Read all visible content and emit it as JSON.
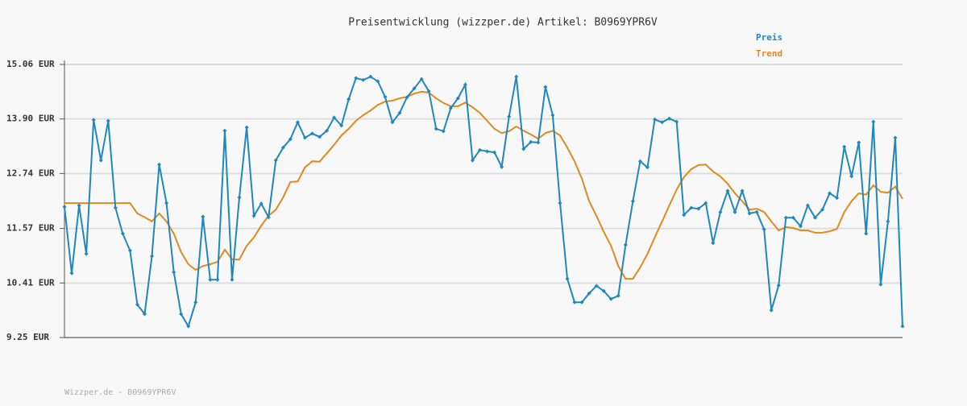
{
  "chart_data": {
    "type": "line",
    "title": "Preisentwicklung (wizzper.de) Artikel: B0969YPR6V",
    "footer": "Wizzper.de - B0969YPR6V",
    "categories": [
      null,
      null,
      null,
      null,
      null,
      null,
      null,
      null,
      null,
      null,
      null,
      null,
      null,
      null,
      null,
      null,
      null,
      null,
      null,
      null,
      null,
      null,
      null,
      null,
      null,
      null,
      null,
      null,
      null,
      null,
      null,
      null,
      null,
      null,
      null,
      null,
      null,
      null,
      null,
      null,
      null,
      null,
      null,
      null,
      null,
      null,
      null,
      null,
      null,
      null,
      null,
      null,
      null,
      null,
      null,
      null,
      null,
      null,
      null,
      null,
      null,
      null,
      null,
      null,
      null,
      null,
      null,
      null,
      null,
      null,
      null,
      null,
      null,
      null,
      null,
      null,
      null,
      null,
      null,
      null,
      null,
      null,
      null,
      null,
      null,
      null,
      null,
      null,
      null,
      null,
      null,
      null,
      null,
      null,
      null,
      null,
      null,
      null,
      null,
      null,
      null,
      null,
      null,
      null,
      null,
      null,
      null,
      null,
      null,
      null,
      null,
      null,
      null,
      null,
      null,
      null
    ],
    "series": [
      {
        "name": "Preis",
        "color": "#1f87c0",
        "markers": true,
        "values": [
          12.03,
          10.62,
          12.06,
          11.03,
          13.88,
          13.02,
          13.86,
          12.01,
          11.46,
          11.1,
          9.95,
          9.75,
          10.98,
          12.93,
          12.11,
          10.64,
          9.75,
          9.49,
          10.0,
          11.82,
          10.48,
          10.48,
          13.65,
          10.48,
          12.23,
          13.72,
          11.84,
          12.1,
          11.81,
          13.02,
          13.29,
          13.47,
          13.83,
          13.5,
          13.59,
          13.52,
          13.65,
          13.93,
          13.76,
          14.32,
          14.77,
          14.73,
          14.8,
          14.7,
          14.37,
          13.83,
          14.03,
          14.36,
          14.55,
          14.75,
          14.49,
          13.69,
          13.64,
          14.13,
          14.34,
          14.63,
          13.02,
          13.24,
          13.21,
          13.19,
          12.88,
          13.95,
          14.8,
          13.26,
          13.41,
          13.4,
          14.58,
          13.98,
          12.11,
          10.5,
          10.0,
          10.0,
          10.19,
          10.35,
          10.24,
          10.07,
          10.14,
          11.22,
          12.15,
          13.0,
          12.87,
          13.89,
          13.83,
          13.91,
          13.84,
          11.86,
          12.01,
          11.99,
          12.11,
          11.26,
          11.92,
          12.37,
          11.92,
          12.37,
          11.89,
          11.92,
          11.55,
          9.83,
          10.36,
          11.8,
          11.8,
          11.62,
          12.06,
          11.8,
          11.97,
          12.32,
          12.22,
          13.31,
          12.68,
          13.4,
          11.46,
          13.84,
          10.38,
          11.72,
          13.5,
          9.49
        ]
      },
      {
        "name": "Trend",
        "color": "#e08a1e",
        "markers": false,
        "values": [
          12.11,
          12.11,
          12.11,
          12.11,
          12.11,
          12.11,
          12.11,
          12.11,
          12.11,
          12.11,
          11.89,
          11.81,
          11.72,
          11.89,
          11.72,
          11.46,
          11.07,
          10.81,
          10.69,
          10.77,
          10.81,
          10.86,
          11.12,
          10.91,
          10.91,
          11.2,
          11.38,
          11.63,
          11.84,
          11.97,
          12.23,
          12.56,
          12.57,
          12.87,
          13.0,
          12.99,
          13.17,
          13.35,
          13.55,
          13.69,
          13.86,
          13.98,
          14.08,
          14.2,
          14.27,
          14.29,
          14.34,
          14.37,
          14.44,
          14.48,
          14.46,
          14.34,
          14.24,
          14.17,
          14.17,
          14.25,
          14.15,
          14.03,
          13.86,
          13.69,
          13.6,
          13.64,
          13.74,
          13.65,
          13.57,
          13.48,
          13.6,
          13.65,
          13.55,
          13.29,
          13.0,
          12.63,
          12.15,
          11.84,
          11.5,
          11.2,
          10.77,
          10.5,
          10.5,
          10.74,
          11.03,
          11.38,
          11.72,
          12.06,
          12.4,
          12.66,
          12.83,
          12.92,
          12.93,
          12.78,
          12.68,
          12.52,
          12.32,
          12.15,
          11.97,
          11.99,
          11.92,
          11.72,
          11.53,
          11.6,
          11.58,
          11.53,
          11.53,
          11.48,
          11.48,
          11.51,
          11.56,
          11.92,
          12.15,
          12.32,
          12.29,
          12.49,
          12.35,
          12.33,
          12.46,
          12.2
        ]
      }
    ],
    "ylim": [
      9.25,
      15.06
    ],
    "yticks": [
      {
        "value": 9.25,
        "label": "9.25 EUR"
      },
      {
        "value": 10.41,
        "label": "10.41 EUR"
      },
      {
        "value": 11.57,
        "label": "11.57 EUR"
      },
      {
        "value": 12.74,
        "label": "12.74 EUR"
      },
      {
        "value": 13.9,
        "label": "13.90 EUR"
      },
      {
        "value": 15.06,
        "label": "15.06 EUR"
      }
    ],
    "grid": true
  }
}
